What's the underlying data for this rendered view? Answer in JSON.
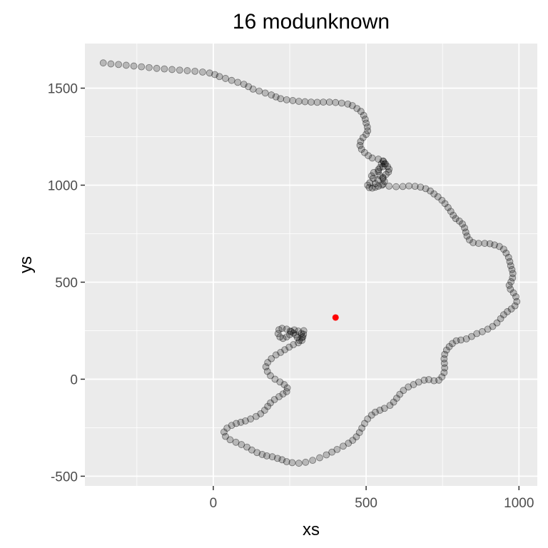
{
  "chart_data": {
    "type": "scatter",
    "title": "16 modunknown",
    "xlabel": "xs",
    "ylabel": "ys",
    "xlim": [
      -420,
      1060
    ],
    "ylim": [
      -550,
      1730
    ],
    "xticks": [
      0,
      500,
      1000
    ],
    "yticks": [
      -500,
      0,
      500,
      1000,
      1500
    ],
    "xtick_labels": [
      "0",
      "500",
      "1000"
    ],
    "ytick_labels": [
      "-500",
      "0",
      "500",
      "1000",
      "1500"
    ],
    "grid": true,
    "legend": "none",
    "colors": {
      "panel": "#ebebeb",
      "grid": "#ffffff",
      "points": "#000000",
      "highlight": "#ff0000"
    },
    "series": [
      {
        "role": "track",
        "points": [
          [
            -360,
            1630
          ],
          [
            -335,
            1625
          ],
          [
            -310,
            1622
          ],
          [
            -285,
            1618
          ],
          [
            -260,
            1614
          ],
          [
            -235,
            1610
          ],
          [
            -210,
            1606
          ],
          [
            -185,
            1602
          ],
          [
            -160,
            1599
          ],
          [
            -135,
            1596
          ],
          [
            -110,
            1593
          ],
          [
            -85,
            1590
          ],
          [
            -60,
            1587
          ],
          [
            -35,
            1583
          ],
          [
            -12,
            1578
          ],
          [
            5,
            1570
          ],
          [
            20,
            1560
          ],
          [
            40,
            1550
          ],
          [
            60,
            1540
          ],
          [
            80,
            1530
          ],
          [
            100,
            1520
          ],
          [
            115,
            1508
          ],
          [
            130,
            1495
          ],
          [
            150,
            1485
          ],
          [
            170,
            1475
          ],
          [
            190,
            1465
          ],
          [
            205,
            1455
          ],
          [
            220,
            1446
          ],
          [
            240,
            1440
          ],
          [
            260,
            1436
          ],
          [
            280,
            1432
          ],
          [
            300,
            1430
          ],
          [
            320,
            1428
          ],
          [
            340,
            1427
          ],
          [
            360,
            1428
          ],
          [
            380,
            1428
          ],
          [
            400,
            1426
          ],
          [
            420,
            1423
          ],
          [
            440,
            1418
          ],
          [
            455,
            1410
          ],
          [
            470,
            1395
          ],
          [
            483,
            1380
          ],
          [
            492,
            1360
          ],
          [
            497,
            1340
          ],
          [
            500,
            1320
          ],
          [
            504,
            1300
          ],
          [
            505,
            1280
          ],
          [
            500,
            1262
          ],
          [
            490,
            1245
          ],
          [
            482,
            1225
          ],
          [
            480,
            1205
          ],
          [
            485,
            1185
          ],
          [
            495,
            1168
          ],
          [
            507,
            1152
          ],
          [
            520,
            1140
          ],
          [
            540,
            1134
          ],
          [
            555,
            1125
          ],
          [
            560,
            1110
          ],
          [
            555,
            1095
          ],
          [
            540,
            1080
          ],
          [
            525,
            1065
          ],
          [
            518,
            1048
          ],
          [
            523,
            1035
          ],
          [
            538,
            1028
          ],
          [
            555,
            1040
          ],
          [
            565,
            1055
          ],
          [
            573,
            1068
          ],
          [
            575,
            1082
          ],
          [
            570,
            1096
          ],
          [
            563,
            1110
          ],
          [
            557,
            1122
          ],
          [
            550,
            1110
          ],
          [
            545,
            1090
          ],
          [
            540,
            1070
          ],
          [
            545,
            1050
          ],
          [
            555,
            1035
          ],
          [
            560,
            1020
          ],
          [
            555,
            1005
          ],
          [
            540,
            995
          ],
          [
            530,
            990
          ],
          [
            520,
            985
          ],
          [
            510,
            988
          ],
          [
            505,
            1000
          ],
          [
            512,
            1012
          ],
          [
            530,
            1008
          ],
          [
            552,
            1000
          ],
          [
            575,
            995
          ],
          [
            598,
            992
          ],
          [
            620,
            993
          ],
          [
            640,
            996
          ],
          [
            660,
            994
          ],
          [
            678,
            990
          ],
          [
            695,
            982
          ],
          [
            710,
            970
          ],
          [
            722,
            955
          ],
          [
            735,
            940
          ],
          [
            748,
            922
          ],
          [
            758,
            905
          ],
          [
            768,
            885
          ],
          [
            777,
            865
          ],
          [
            785,
            845
          ],
          [
            793,
            828
          ],
          [
            805,
            815
          ],
          [
            815,
            800
          ],
          [
            822,
            780
          ],
          [
            826,
            758
          ],
          [
            830,
            738
          ],
          [
            838,
            718
          ],
          [
            850,
            704
          ],
          [
            868,
            700
          ],
          [
            888,
            700
          ],
          [
            905,
            698
          ],
          [
            920,
            692
          ],
          [
            936,
            684
          ],
          [
            950,
            670
          ],
          [
            958,
            650
          ],
          [
            966,
            628
          ],
          [
            970,
            606
          ],
          [
            973,
            585
          ],
          [
            977,
            565
          ],
          [
            980,
            545
          ],
          [
            979,
            522
          ],
          [
            974,
            502
          ],
          [
            968,
            484
          ],
          [
            972,
            464
          ],
          [
            982,
            445
          ],
          [
            990,
            425
          ],
          [
            993,
            400
          ],
          [
            987,
            378
          ],
          [
            975,
            362
          ],
          [
            962,
            348
          ],
          [
            950,
            332
          ],
          [
            940,
            312
          ],
          [
            928,
            290
          ],
          [
            914,
            272
          ],
          [
            898,
            258
          ],
          [
            880,
            245
          ],
          [
            862,
            235
          ],
          [
            845,
            220
          ],
          [
            828,
            208
          ],
          [
            810,
            202
          ],
          [
            795,
            198
          ],
          [
            782,
            184
          ],
          [
            772,
            168
          ],
          [
            763,
            150
          ],
          [
            757,
            128
          ],
          [
            755,
            105
          ],
          [
            756,
            82
          ],
          [
            757,
            58
          ],
          [
            755,
            34
          ],
          [
            748,
            12
          ],
          [
            738,
            -5
          ],
          [
            722,
            -8
          ],
          [
            705,
            -2
          ],
          [
            690,
            -5
          ],
          [
            672,
            -15
          ],
          [
            655,
            -28
          ],
          [
            638,
            -40
          ],
          [
            622,
            -58
          ],
          [
            610,
            -78
          ],
          [
            600,
            -98
          ],
          [
            590,
            -118
          ],
          [
            578,
            -135
          ],
          [
            560,
            -150
          ],
          [
            545,
            -160
          ],
          [
            530,
            -170
          ],
          [
            518,
            -185
          ],
          [
            505,
            -205
          ],
          [
            495,
            -228
          ],
          [
            486,
            -252
          ],
          [
            478,
            -275
          ],
          [
            468,
            -297
          ],
          [
            456,
            -315
          ],
          [
            442,
            -330
          ],
          [
            425,
            -345
          ],
          [
            405,
            -362
          ],
          [
            388,
            -376
          ],
          [
            370,
            -390
          ],
          [
            348,
            -405
          ],
          [
            325,
            -418
          ],
          [
            302,
            -428
          ],
          [
            280,
            -433
          ],
          [
            258,
            -430
          ],
          [
            240,
            -425
          ],
          [
            225,
            -415
          ],
          [
            210,
            -408
          ],
          [
            193,
            -400
          ],
          [
            175,
            -395
          ],
          [
            160,
            -388
          ],
          [
            143,
            -378
          ],
          [
            126,
            -365
          ],
          [
            110,
            -350
          ],
          [
            92,
            -337
          ],
          [
            74,
            -325
          ],
          [
            55,
            -312
          ],
          [
            40,
            -295
          ],
          [
            35,
            -272
          ],
          [
            45,
            -252
          ],
          [
            60,
            -238
          ],
          [
            75,
            -228
          ],
          [
            90,
            -222
          ],
          [
            105,
            -215
          ],
          [
            122,
            -205
          ],
          [
            140,
            -192
          ],
          [
            155,
            -178
          ],
          [
            168,
            -160
          ],
          [
            178,
            -140
          ],
          [
            187,
            -122
          ],
          [
            200,
            -105
          ],
          [
            215,
            -90
          ],
          [
            228,
            -76
          ],
          [
            240,
            -64
          ],
          [
            242,
            -45
          ],
          [
            232,
            -28
          ],
          [
            218,
            -14
          ],
          [
            202,
            0
          ],
          [
            187,
            18
          ],
          [
            177,
            40
          ],
          [
            172,
            64
          ],
          [
            178,
            86
          ],
          [
            190,
            106
          ],
          [
            205,
            125
          ],
          [
            220,
            138
          ],
          [
            234,
            152
          ],
          [
            248,
            165
          ],
          [
            262,
            178
          ],
          [
            278,
            188
          ],
          [
            290,
            200
          ],
          [
            293,
            218
          ],
          [
            288,
            236
          ],
          [
            278,
            248
          ],
          [
            265,
            254
          ],
          [
            255,
            245
          ],
          [
            250,
            230
          ],
          [
            240,
            218
          ],
          [
            228,
            210
          ],
          [
            218,
            218
          ],
          [
            212,
            235
          ],
          [
            215,
            255
          ],
          [
            225,
            262
          ],
          [
            240,
            258
          ],
          [
            252,
            248
          ],
          [
            262,
            238
          ],
          [
            270,
            228
          ],
          [
            275,
            215
          ],
          [
            282,
            200
          ],
          [
            290,
            215
          ],
          [
            295,
            232
          ],
          [
            296,
            250
          ]
        ]
      },
      {
        "role": "highlight",
        "points": [
          [
            400,
            318
          ]
        ]
      }
    ]
  }
}
